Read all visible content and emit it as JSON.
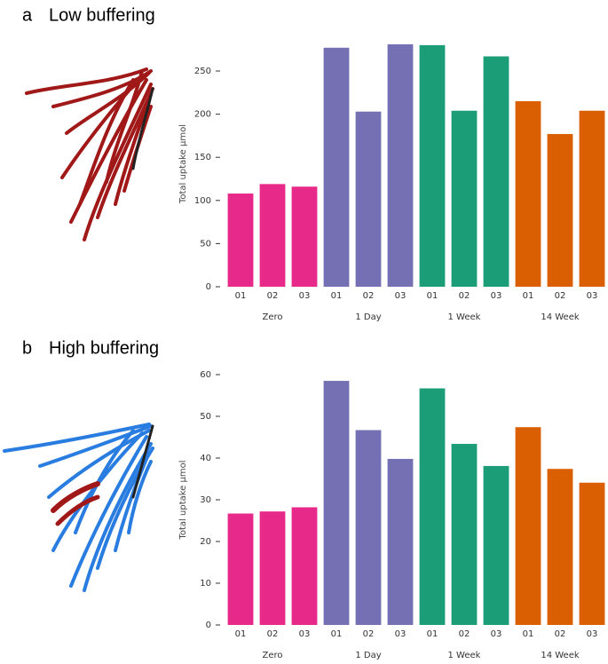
{
  "chart_data": [
    {
      "type": "bar",
      "panel": "a",
      "title": "Low buffering",
      "ylabel": "Total uptake μmol",
      "ylim": [
        0,
        285
      ],
      "yticks": [
        0,
        50,
        100,
        150,
        200,
        250
      ],
      "groups": [
        {
          "name": "Zero",
          "color": "#e7298a",
          "categories": [
            "01",
            "02",
            "03"
          ],
          "values": [
            108,
            119,
            116
          ]
        },
        {
          "name": "1 Day",
          "color": "#7570b3",
          "categories": [
            "01",
            "02",
            "03"
          ],
          "values": [
            277,
            203,
            281
          ]
        },
        {
          "name": "1 Week",
          "color": "#1b9e77",
          "categories": [
            "01",
            "02",
            "03"
          ],
          "values": [
            280,
            204,
            267
          ]
        },
        {
          "name": "14 Week",
          "color": "#d95f02",
          "categories": [
            "01",
            "02",
            "03"
          ],
          "values": [
            215,
            177,
            204
          ]
        }
      ]
    },
    {
      "type": "bar",
      "panel": "b",
      "title": "High buffering",
      "ylabel": "Total uptake μmol",
      "ylim": [
        0,
        60
      ],
      "yticks": [
        0,
        10,
        20,
        30,
        40,
        50,
        60
      ],
      "groups": [
        {
          "name": "Zero",
          "color": "#e7298a",
          "categories": [
            "01",
            "02",
            "03"
          ],
          "values": [
            26.7,
            27.2,
            28.2
          ]
        },
        {
          "name": "1 Day",
          "color": "#7570b3",
          "categories": [
            "01",
            "02",
            "03"
          ],
          "values": [
            58.5,
            46.7,
            39.8
          ]
        },
        {
          "name": "1 Week",
          "color": "#1b9e77",
          "categories": [
            "01",
            "02",
            "03"
          ],
          "values": [
            56.7,
            43.4,
            38.1
          ]
        },
        {
          "name": "14 Week",
          "color": "#d95f02",
          "categories": [
            "01",
            "02",
            "03"
          ],
          "values": [
            47.4,
            37.4,
            34.1
          ]
        }
      ]
    }
  ]
}
